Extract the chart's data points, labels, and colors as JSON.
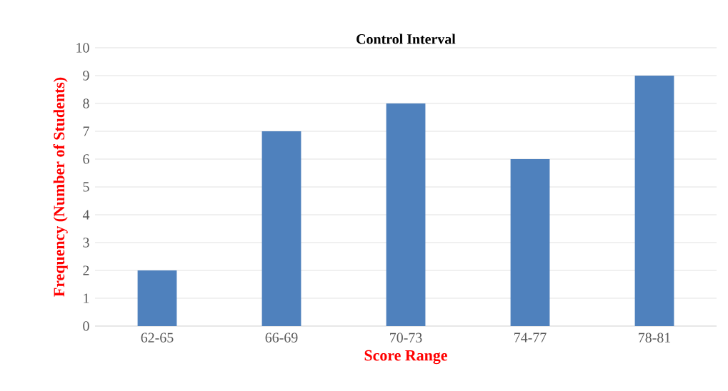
{
  "chart_data": {
    "type": "bar",
    "title": "Control Interval",
    "xlabel": "Score Range",
    "ylabel": "Frequency (Number of Students)",
    "categories": [
      "62-65",
      "66-69",
      "70-73",
      "74-77",
      "78-81"
    ],
    "values": [
      2,
      7,
      8,
      6,
      9
    ],
    "color": "#4f81bd",
    "ylim": [
      0,
      10
    ],
    "yticks": [
      0,
      1,
      2,
      3,
      4,
      5,
      6,
      7,
      8,
      9,
      10
    ],
    "grid": "y"
  }
}
